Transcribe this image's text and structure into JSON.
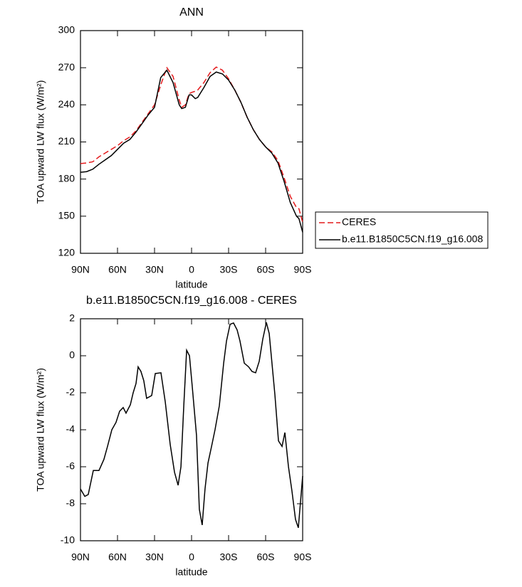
{
  "chart_data": [
    {
      "type": "line",
      "title": "ANN",
      "x_label": "latitude",
      "y_label": "TOA upward LW flux (W/m²)",
      "legend": "right",
      "x": [
        90,
        85,
        80,
        75,
        70,
        65,
        60,
        55,
        50,
        45,
        40,
        35,
        30,
        25,
        20,
        15,
        10,
        8,
        5,
        2,
        0,
        -3,
        -5,
        -10,
        -15,
        -20,
        -25,
        -30,
        -35,
        -40,
        -45,
        -50,
        -55,
        -60,
        -65,
        -70,
        -75,
        -80,
        -85,
        -87,
        -90
      ],
      "series": [
        {
          "name": "CERES",
          "color": "#e41a1c",
          "dashed": true,
          "values": [
            192.5,
            193,
            194,
            198,
            201,
            204,
            207,
            211,
            214,
            219,
            226,
            233,
            240,
            256,
            270,
            263,
            244,
            238,
            240,
            249,
            250,
            251,
            252,
            258,
            266,
            270.5,
            268,
            261,
            252,
            242,
            230,
            220,
            212,
            206,
            202,
            195,
            181,
            166,
            157,
            156,
            145
          ]
        },
        {
          "name": "b.e11.B1850C5CN.f19_g16.008",
          "color": "#000000",
          "dashed": false,
          "values": [
            185.5,
            186,
            188,
            192,
            195.5,
            199,
            204,
            209,
            212,
            218,
            225,
            232,
            238,
            262,
            268,
            258,
            240,
            237,
            238,
            248,
            248,
            245,
            246,
            254,
            263,
            266.5,
            265,
            260,
            252,
            242,
            230,
            220,
            212,
            206,
            201,
            193,
            178,
            161,
            150,
            148,
            137
          ]
        }
      ],
      "xlim": [
        90,
        -90
      ],
      "xticks": [
        {
          "value": 90,
          "label": "90N"
        },
        {
          "value": 60,
          "label": "60N"
        },
        {
          "value": 30,
          "label": "30N"
        },
        0,
        {
          "value": -30,
          "label": "30S"
        },
        {
          "value": -60,
          "label": "60S"
        },
        {
          "value": -90,
          "label": "90S"
        }
      ],
      "ylim": [
        120,
        300
      ],
      "yticks": [
        120,
        150,
        180,
        210,
        240,
        270,
        300
      ]
    },
    {
      "type": "line",
      "title": "b.e11.B1850C5CN.f19_g16.008 - CERES",
      "x_label": "latitude",
      "y_label": "TOA upward LW flux (W/m²)",
      "x": [
        90,
        86.5,
        83.7,
        79.6,
        75,
        71,
        68.1,
        64.6,
        61.2,
        58.3,
        55.4,
        53.1,
        49.6,
        47.3,
        45,
        43.3,
        41,
        38.7,
        36.4,
        32.3,
        29.4,
        24.8,
        21.3,
        17.3,
        13.8,
        10.9,
        8.6,
        6.3,
        4,
        1.7,
        -0.6,
        -4,
        -6.3,
        -8.6,
        -10.9,
        -13.3,
        -16.2,
        -19,
        -22.5,
        -26,
        -28.3,
        -31.2,
        -34,
        -36.9,
        -39.2,
        -42.7,
        -46.2,
        -49,
        -51.9,
        -54.8,
        -57.7,
        -60.6,
        -62.9,
        -67.5,
        -70.4,
        -73.3,
        -75.6,
        -78.5,
        -81.3,
        -84.2,
        -86.5,
        -90
      ],
      "series": [
        {
          "color": "#000000",
          "dashed": false,
          "values": [
            -7.2,
            -7.6,
            -7.5,
            -6.2,
            -6.2,
            -5.6,
            -4.9,
            -4,
            -3.6,
            -3,
            -2.8,
            -3.1,
            -2.65,
            -2,
            -1.5,
            -0.6,
            -0.85,
            -1.35,
            -2.3,
            -2.15,
            -0.96,
            -0.92,
            -2.5,
            -4.8,
            -6.3,
            -7,
            -6,
            -2.7,
            0.3,
            0,
            -1.7,
            -4.3,
            -8.3,
            -9.15,
            -7.2,
            -5.8,
            -4.9,
            -4,
            -2.7,
            -0.4,
            0.8,
            1.7,
            1.77,
            1.4,
            0.8,
            -0.4,
            -0.6,
            -0.85,
            -0.92,
            -0.3,
            0.9,
            1.8,
            1.2,
            -2.1,
            -4.6,
            -4.9,
            -4.15,
            -6,
            -7.3,
            -8.85,
            -9.3,
            -6.5
          ]
        }
      ],
      "xlim": [
        90,
        -90
      ],
      "xticks": [
        {
          "value": 90,
          "label": "90N"
        },
        {
          "value": 60,
          "label": "60N"
        },
        {
          "value": 30,
          "label": "30N"
        },
        0,
        {
          "value": -30,
          "label": "30S"
        },
        {
          "value": -60,
          "label": "60S"
        },
        {
          "value": -90,
          "label": "90S"
        }
      ],
      "ylim": [
        -10,
        2
      ],
      "yticks": [
        -10,
        -8,
        -6,
        -4,
        -2,
        0,
        2
      ]
    }
  ]
}
